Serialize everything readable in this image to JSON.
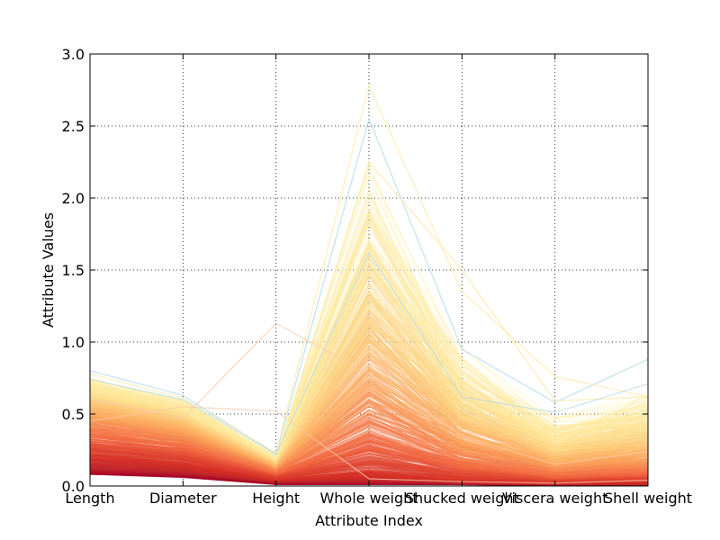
{
  "chart_data": {
    "type": "line",
    "subtype": "parallel-coordinates",
    "title": "",
    "xlabel": "Attribute Index",
    "ylabel": "Attribute Values",
    "ylim": [
      0,
      3.0
    ],
    "yticks": [
      "0.0",
      "0.5",
      "1.0",
      "1.5",
      "2.0",
      "2.5",
      "3.0"
    ],
    "categories": [
      "Length",
      "Diameter",
      "Height",
      "Whole weight",
      "Shucked weight",
      "Viscera weight",
      "Shell weight"
    ],
    "grid": true,
    "colormap": "RdYlBu",
    "series_profiles": [
      {
        "name": "",
        "values": [
          0.08,
          0.06,
          0.01,
          0.01,
          0.01,
          0.005,
          0.005
        ],
        "color": "#a50026"
      },
      {
        "name": "",
        "values": [
          0.13,
          0.1,
          0.03,
          0.04,
          0.02,
          0.01,
          0.01
        ],
        "color": "#c1272d"
      },
      {
        "name": "",
        "values": [
          0.2,
          0.15,
          0.04,
          0.09,
          0.04,
          0.02,
          0.03
        ],
        "color": "#d73027"
      },
      {
        "name": "",
        "values": [
          0.28,
          0.22,
          0.07,
          0.22,
          0.1,
          0.05,
          0.07
        ],
        "color": "#e34a33"
      },
      {
        "name": "",
        "values": [
          0.36,
          0.28,
          0.09,
          0.36,
          0.16,
          0.08,
          0.1
        ],
        "color": "#f46d43"
      },
      {
        "name": "",
        "values": [
          0.45,
          0.35,
          0.12,
          0.6,
          0.26,
          0.13,
          0.17
        ],
        "color": "#f88d52"
      },
      {
        "name": "",
        "values": [
          0.52,
          0.41,
          0.14,
          0.85,
          0.37,
          0.18,
          0.24
        ],
        "color": "#fdae61"
      },
      {
        "name": "",
        "values": [
          0.6,
          0.47,
          0.16,
          1.15,
          0.5,
          0.25,
          0.33
        ],
        "color": "#fec877"
      },
      {
        "name": "",
        "values": [
          0.66,
          0.52,
          0.18,
          1.45,
          0.62,
          0.31,
          0.42
        ],
        "color": "#fee090"
      },
      {
        "name": "",
        "values": [
          0.72,
          0.57,
          0.2,
          1.9,
          0.8,
          0.4,
          0.55
        ],
        "color": "#ffefa5"
      },
      {
        "name": "",
        "values": [
          0.8,
          0.63,
          0.22,
          2.55,
          0.95,
          0.58,
          0.88
        ],
        "color": "#abd9e9"
      },
      {
        "name": "",
        "values": [
          0.78,
          0.61,
          0.23,
          2.78,
          1.35,
          0.76,
          0.62
        ],
        "color": "#fee8a0"
      },
      {
        "name": "",
        "values": [
          0.45,
          0.55,
          0.52,
          0.05,
          0.03,
          0.02,
          0.04
        ],
        "color": "#fcc8a8"
      },
      {
        "name": "",
        "values": [
          0.6,
          0.47,
          1.13,
          0.78,
          0.35,
          0.15,
          0.24
        ],
        "color": "#fcc8a8"
      },
      {
        "name": "",
        "values": [
          0.7,
          0.55,
          0.19,
          2.25,
          1.5,
          0.59,
          0.62
        ],
        "color": "#fee6a0"
      },
      {
        "name": "",
        "values": [
          0.74,
          0.6,
          0.22,
          1.62,
          0.62,
          0.51,
          0.71
        ],
        "color": "#b7dbe8"
      }
    ],
    "bundle_lines": 700
  }
}
